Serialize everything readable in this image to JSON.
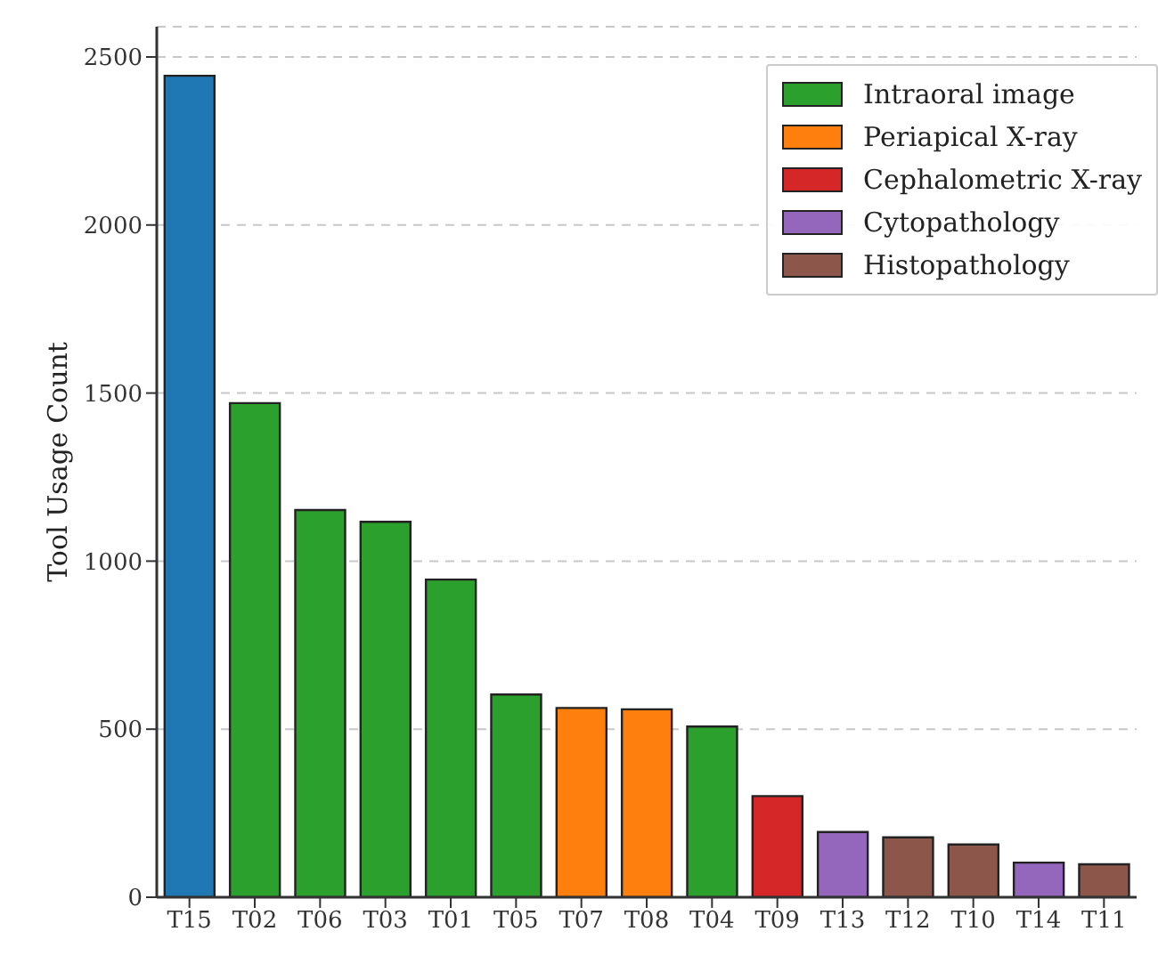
{
  "chart_data": {
    "type": "bar",
    "ylabel": "Tool Usage Count",
    "categories": [
      "T15",
      "T02",
      "T06",
      "T03",
      "T01",
      "T05",
      "T07",
      "T08",
      "T04",
      "T09",
      "T13",
      "T12",
      "T10",
      "T14",
      "T11"
    ],
    "stacked": true,
    "ylim": [
      0,
      2590
    ],
    "yticks": [
      0,
      500,
      1000,
      1500,
      2000,
      2500
    ],
    "grid": "y",
    "legend": "top right",
    "series": [
      {
        "color": "#1f77b4",
        "values": [
          2444,
          null,
          null,
          null,
          null,
          null,
          null,
          null,
          null,
          null,
          null,
          null,
          null,
          null,
          null
        ]
      },
      {
        "name": "Intraoral image",
        "color": "#2ca02c",
        "values": [
          null,
          1470,
          1152,
          1117,
          945,
          603,
          null,
          null,
          508,
          null,
          null,
          null,
          null,
          null,
          null
        ]
      },
      {
        "name": "Periapical X-ray",
        "color": "#ff7f0e",
        "values": [
          null,
          null,
          null,
          null,
          null,
          null,
          563,
          559,
          null,
          null,
          null,
          null,
          null,
          null,
          null
        ]
      },
      {
        "name": "Cephalometric X-ray",
        "color": "#d62728",
        "values": [
          null,
          null,
          null,
          null,
          null,
          null,
          null,
          null,
          null,
          301,
          null,
          null,
          null,
          null,
          null
        ]
      },
      {
        "name": "Cytopathology",
        "color": "#9467bd",
        "values": [
          null,
          null,
          null,
          null,
          null,
          null,
          null,
          null,
          null,
          null,
          194,
          null,
          null,
          103,
          null
        ]
      },
      {
        "name": "Histopathology",
        "color": "#8c564b",
        "values": [
          null,
          null,
          null,
          null,
          null,
          null,
          null,
          null,
          null,
          null,
          null,
          178,
          157,
          null,
          98
        ]
      }
    ]
  }
}
